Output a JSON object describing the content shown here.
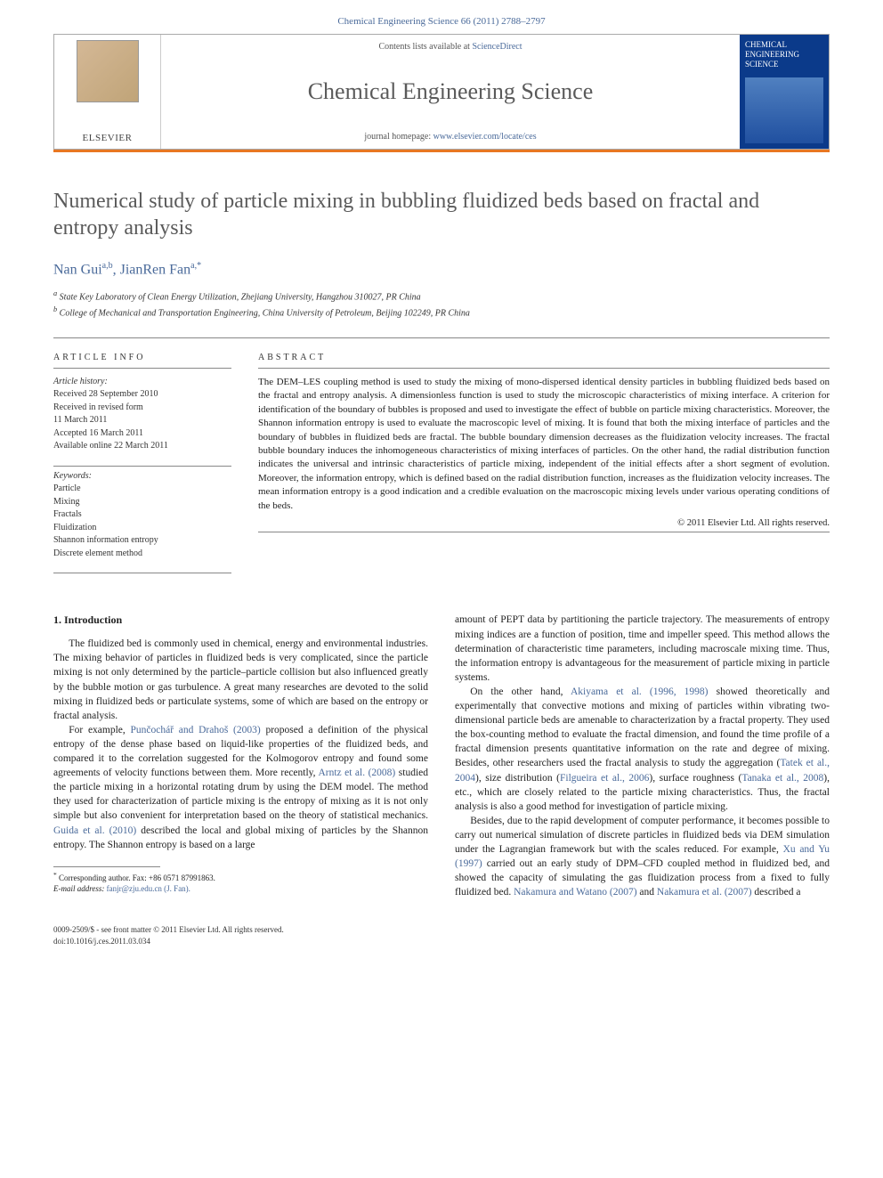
{
  "header": {
    "citation": "Chemical Engineering Science 66 (2011) 2788–2797"
  },
  "banner": {
    "contents_label": "Contents lists available at",
    "contents_link": "ScienceDirect",
    "journal": "Chemical Engineering Science",
    "homepage_label": "journal homepage:",
    "homepage_url": "www.elsevier.com/locate/ces",
    "publisher_logo": "ELSEVIER",
    "cover_title": "CHEMICAL ENGINEERING SCIENCE"
  },
  "article": {
    "title": "Numerical study of particle mixing in bubbling fluidized beds based on fractal and entropy analysis",
    "authors_html_parts": {
      "a1_name": "Nan Gui",
      "a1_aff": "a,b",
      "a2_name": "JianRen Fan",
      "a2_aff": "a,",
      "corr_mark": "*"
    },
    "affiliations": {
      "a": "State Key Laboratory of Clean Energy Utilization, Zhejiang University, Hangzhou 310027, PR China",
      "b": "College of Mechanical and Transportation Engineering, China University of Petroleum, Beijing 102249, PR China"
    }
  },
  "info": {
    "heading": "ARTICLE INFO",
    "history_label": "Article history:",
    "received": "Received 28 September 2010",
    "revised_label": "Received in revised form",
    "revised_date": "11 March 2011",
    "accepted": "Accepted 16 March 2011",
    "online": "Available online 22 March 2011",
    "keywords_label": "Keywords:",
    "keywords": [
      "Particle",
      "Mixing",
      "Fractals",
      "Fluidization",
      "Shannon information entropy",
      "Discrete element method"
    ]
  },
  "abstract": {
    "heading": "ABSTRACT",
    "text": "The DEM–LES coupling method is used to study the mixing of mono-dispersed identical density particles in bubbling fluidized beds based on the fractal and entropy analysis. A dimensionless function is used to study the microscopic characteristics of mixing interface. A criterion for identification of the boundary of bubbles is proposed and used to investigate the effect of bubble on particle mixing characteristics. Moreover, the Shannon information entropy is used to evaluate the macroscopic level of mixing. It is found that both the mixing interface of particles and the boundary of bubbles in fluidized beds are fractal. The bubble boundary dimension decreases as the fluidization velocity increases. The fractal bubble boundary induces the inhomogeneous characteristics of mixing interfaces of particles. On the other hand, the radial distribution function indicates the universal and intrinsic characteristics of particle mixing, independent of the initial effects after a short segment of evolution. Moreover, the information entropy, which is defined based on the radial distribution function, increases as the fluidization velocity increases. The mean information entropy is a good indication and a credible evaluation on the macroscopic mixing levels under various operating conditions of the beds.",
    "copyright": "© 2011 Elsevier Ltd. All rights reserved."
  },
  "body": {
    "section_heading": "1. Introduction",
    "col1_p1": "The fluidized bed is commonly used in chemical, energy and environmental industries. The mixing behavior of particles in fluidized beds is very complicated, since the particle mixing is not only determined by the particle–particle collision but also influenced greatly by the bubble motion or gas turbulence. A great many researches are devoted to the solid mixing in fluidized beds or particulate systems, some of which are based on the entropy or fractal analysis.",
    "col1_p2a": "For example, ",
    "col1_c1": "Punčochář and Drahoš (2003)",
    "col1_p2b": " proposed a definition of the physical entropy of the dense phase based on liquid-like properties of the fluidized beds, and compared it to the correlation suggested for the Kolmogorov entropy and found some agreements of velocity functions between them. More recently, ",
    "col1_c2": "Arntz et al. (2008)",
    "col1_p2c": " studied the particle mixing in a horizontal rotating drum by using the DEM model. The method they used for characterization of particle mixing is the entropy of mixing as it is not only simple but also convenient for interpretation based on the theory of statistical mechanics. ",
    "col1_c3": "Guida et al. (2010)",
    "col1_p2d": " described the local and global mixing of particles by the Shannon entropy. The Shannon entropy is based on a large",
    "col2_p1": "amount of PEPT data by partitioning the particle trajectory. The measurements of entropy mixing indices are a function of position, time and impeller speed. This method allows the determination of characteristic time parameters, including macroscale mixing time. Thus, the information entropy is advantageous for the measurement of particle mixing in particle systems.",
    "col2_p2a": "On the other hand, ",
    "col2_c1": "Akiyama et al. (1996, 1998)",
    "col2_p2b": " showed theoretically and experimentally that convective motions and mixing of particles within vibrating two-dimensional particle beds are amenable to characterization by a fractal property. They used the box-counting method to evaluate the fractal dimension, and found the time profile of a fractal dimension presents quantitative information on the rate and degree of mixing. Besides, other researchers used the fractal analysis to study the aggregation (",
    "col2_c2": "Tatek et al., 2004",
    "col2_p2c": "), size distribution (",
    "col2_c3": "Filgueira et al., 2006",
    "col2_p2d": "), surface roughness (",
    "col2_c4": "Tanaka et al., 2008",
    "col2_p2e": "), etc., which are closely related to the particle mixing characteristics. Thus, the fractal analysis is also a good method for investigation of particle mixing.",
    "col2_p3a": "Besides, due to the rapid development of computer performance, it becomes possible to carry out numerical simulation of discrete particles in fluidized beds via DEM simulation under the Lagrangian framework but with the scales reduced. For example, ",
    "col2_c5": "Xu and Yu (1997)",
    "col2_p3b": " carried out an early study of DPM–CFD coupled method in fluidized bed, and showed the capacity of simulating the gas fluidization process from a fixed to fully fluidized bed. ",
    "col2_c6": "Nakamura and Watano (2007)",
    "col2_p3c": " and ",
    "col2_c7": "Nakamura et al. (2007)",
    "col2_p3d": " described a"
  },
  "footnote": {
    "corr_label": "Corresponding author. Fax: +86 0571 87991863.",
    "email_label": "E-mail address:",
    "email": "fanjr@zju.edu.cn (J. Fan)."
  },
  "footer": {
    "issn_line": "0009-2509/$ - see front matter © 2011 Elsevier Ltd. All rights reserved.",
    "doi_line": "doi:10.1016/j.ces.2011.03.034"
  }
}
